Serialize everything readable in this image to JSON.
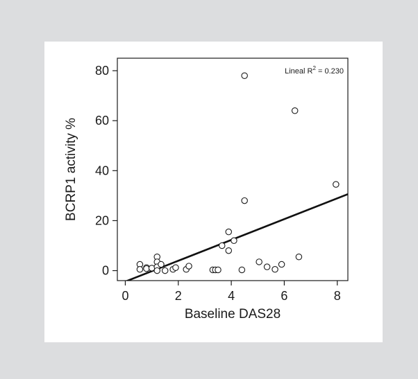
{
  "chart_data": {
    "type": "scatter",
    "xlabel": "Baseline DAS28",
    "ylabel": "BCRP1 activity %",
    "xlim": [
      -0.3,
      8.4
    ],
    "ylim": [
      -4,
      85
    ],
    "xticks": [
      0,
      2,
      4,
      6,
      8
    ],
    "yticks": [
      0,
      20,
      40,
      60,
      80
    ],
    "annotation_prefix": "Lineal R",
    "annotation_exponent": "2",
    "annotation_suffix": " = 0.230",
    "grid": false,
    "trendline": {
      "x": [
        -0.1,
        8.4
      ],
      "y": [
        -4.8,
        30.6
      ]
    },
    "points": [
      {
        "x": 0.55,
        "y": 2.5
      },
      {
        "x": 0.55,
        "y": 0.5
      },
      {
        "x": 0.8,
        "y": 1.2
      },
      {
        "x": 0.8,
        "y": 0.8
      },
      {
        "x": 1.0,
        "y": 1.0
      },
      {
        "x": 1.2,
        "y": 5.5
      },
      {
        "x": 1.2,
        "y": 3.5
      },
      {
        "x": 1.2,
        "y": 1.5
      },
      {
        "x": 1.2,
        "y": 0.0
      },
      {
        "x": 1.35,
        "y": 2.5
      },
      {
        "x": 1.5,
        "y": 0.0
      },
      {
        "x": 1.8,
        "y": 0.5
      },
      {
        "x": 1.9,
        "y": 1.2
      },
      {
        "x": 2.3,
        "y": 0.5
      },
      {
        "x": 2.4,
        "y": 1.8
      },
      {
        "x": 3.3,
        "y": 0.3
      },
      {
        "x": 3.4,
        "y": 0.3
      },
      {
        "x": 3.5,
        "y": 0.3
      },
      {
        "x": 3.65,
        "y": 10.0
      },
      {
        "x": 3.9,
        "y": 15.5
      },
      {
        "x": 3.9,
        "y": 8.0
      },
      {
        "x": 4.1,
        "y": 12.0
      },
      {
        "x": 4.4,
        "y": 0.3
      },
      {
        "x": 4.5,
        "y": 78.0
      },
      {
        "x": 4.5,
        "y": 28.0
      },
      {
        "x": 5.05,
        "y": 3.5
      },
      {
        "x": 5.35,
        "y": 1.5
      },
      {
        "x": 5.65,
        "y": 0.5
      },
      {
        "x": 5.9,
        "y": 2.5
      },
      {
        "x": 6.4,
        "y": 64.0
      },
      {
        "x": 6.55,
        "y": 5.5
      },
      {
        "x": 7.95,
        "y": 34.5
      }
    ]
  }
}
